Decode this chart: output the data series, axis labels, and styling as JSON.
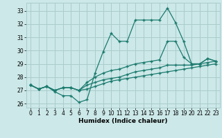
{
  "xlabel": "Humidex (Indice chaleur)",
  "bg_color": "#cce8e8",
  "grid_color": "#aacccc",
  "line_color": "#1a7a6e",
  "xlim": [
    -0.5,
    23.5
  ],
  "ylim": [
    25.7,
    33.6
  ],
  "yticks": [
    26,
    27,
    28,
    29,
    30,
    31,
    32,
    33
  ],
  "xticks": [
    0,
    1,
    2,
    3,
    4,
    5,
    6,
    7,
    8,
    9,
    10,
    11,
    12,
    13,
    14,
    15,
    16,
    17,
    18,
    19,
    20,
    21,
    22,
    23
  ],
  "series1_x": [
    0,
    1,
    2,
    3,
    4,
    5,
    6,
    7,
    8,
    9,
    10,
    11,
    12,
    13,
    14,
    15,
    16,
    17,
    18,
    19,
    20,
    21,
    22,
    23
  ],
  "series1_y": [
    27.4,
    27.1,
    27.3,
    26.9,
    26.6,
    26.6,
    26.1,
    26.3,
    28.3,
    29.9,
    31.3,
    30.7,
    30.7,
    32.3,
    32.3,
    32.3,
    32.3,
    33.2,
    32.1,
    30.7,
    29.0,
    29.0,
    29.4,
    29.2
  ],
  "series2_x": [
    0,
    1,
    2,
    3,
    4,
    5,
    6,
    7,
    8,
    9,
    10,
    11,
    12,
    13,
    14,
    15,
    16,
    17,
    18,
    19,
    20,
    21,
    22,
    23
  ],
  "series2_y": [
    27.4,
    27.1,
    27.3,
    27.0,
    27.2,
    27.2,
    27.0,
    27.6,
    28.0,
    28.3,
    28.5,
    28.6,
    28.8,
    29.0,
    29.1,
    29.2,
    29.3,
    30.7,
    30.7,
    29.5,
    29.0,
    29.0,
    29.4,
    29.2
  ],
  "series3_x": [
    0,
    1,
    2,
    3,
    4,
    5,
    6,
    7,
    8,
    9,
    10,
    11,
    12,
    13,
    14,
    15,
    16,
    17,
    18,
    19,
    20,
    21,
    22,
    23
  ],
  "series3_y": [
    27.4,
    27.1,
    27.3,
    27.0,
    27.2,
    27.2,
    27.0,
    27.4,
    27.6,
    27.8,
    27.9,
    28.0,
    28.2,
    28.4,
    28.5,
    28.6,
    28.7,
    28.9,
    28.9,
    28.9,
    28.9,
    29.0,
    29.1,
    29.2
  ],
  "series4_x": [
    0,
    1,
    2,
    3,
    4,
    5,
    6,
    7,
    8,
    9,
    10,
    11,
    12,
    13,
    14,
    15,
    16,
    17,
    18,
    19,
    20,
    21,
    22,
    23
  ],
  "series4_y": [
    27.4,
    27.1,
    27.3,
    27.0,
    27.2,
    27.2,
    27.0,
    27.1,
    27.3,
    27.5,
    27.7,
    27.8,
    27.9,
    28.0,
    28.1,
    28.2,
    28.3,
    28.4,
    28.5,
    28.6,
    28.7,
    28.8,
    28.9,
    29.0
  ],
  "markersize": 3,
  "linewidth": 0.9
}
